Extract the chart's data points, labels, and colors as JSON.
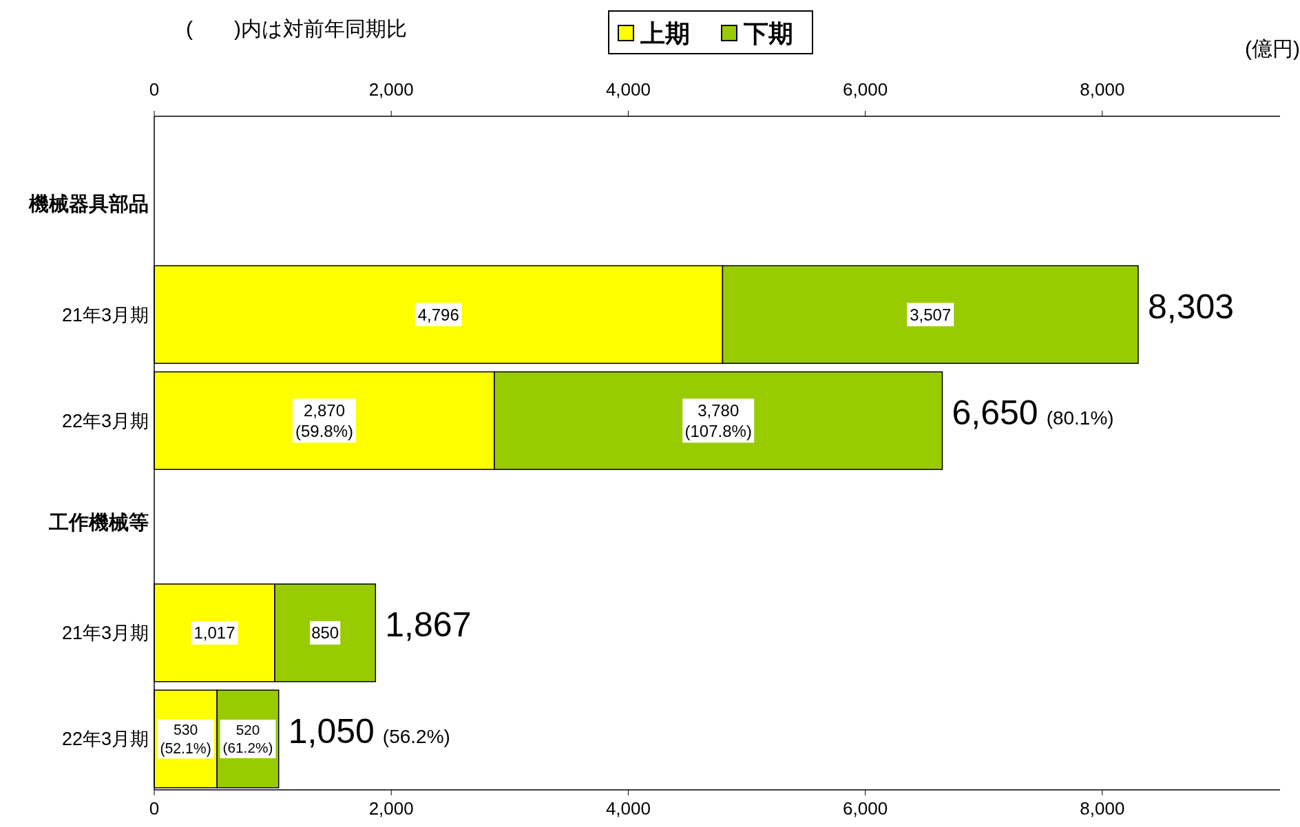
{
  "chart_data": {
    "type": "bar",
    "orientation": "horizontal",
    "stacked": true,
    "categories": [
      "機械器具部品",
      "21年3月期",
      "22年3月期",
      "工作機械等",
      "21年3月期",
      "22年3月期"
    ],
    "series": [
      {
        "name": "上期",
        "color": "#ffff00",
        "values": [
          null,
          4796,
          2870,
          null,
          1017,
          530
        ],
        "value_labels": [
          null,
          "4,796",
          "2,870 (59.8%)",
          null,
          "1,017",
          "530 (52.1%)"
        ]
      },
      {
        "name": "下期",
        "color": "#99cc00",
        "values": [
          null,
          3507,
          3780,
          null,
          850,
          520
        ],
        "value_labels": [
          null,
          "3,507",
          "3,780 (107.8%)",
          null,
          "850",
          "520 (61.2%)"
        ]
      }
    ],
    "totals": [
      null,
      "8,303",
      "6,650 (80.1%)",
      null,
      "1,867",
      "1,050 (56.2%)"
    ],
    "xlim": [
      0,
      9500
    ],
    "xticks": [
      0,
      {
        "value": 2000,
        "label": "2,000"
      },
      {
        "value": 4000,
        "label": "4,000"
      },
      {
        "value": 6000,
        "label": "6,000"
      },
      {
        "value": 8000,
        "label": "8,000"
      }
    ],
    "x2lim": [
      0,
      9500
    ],
    "x2ticks": [
      0,
      {
        "value": 2000,
        "label": "2,000"
      },
      {
        "value": 4000,
        "label": "4,000"
      },
      {
        "value": 6000,
        "label": "6,000"
      },
      {
        "value": 8000,
        "label": "8,000"
      }
    ],
    "legend": "top",
    "grid": false,
    "annotations": [
      "(　　)内は対前年同期比",
      "(億円)"
    ]
  }
}
